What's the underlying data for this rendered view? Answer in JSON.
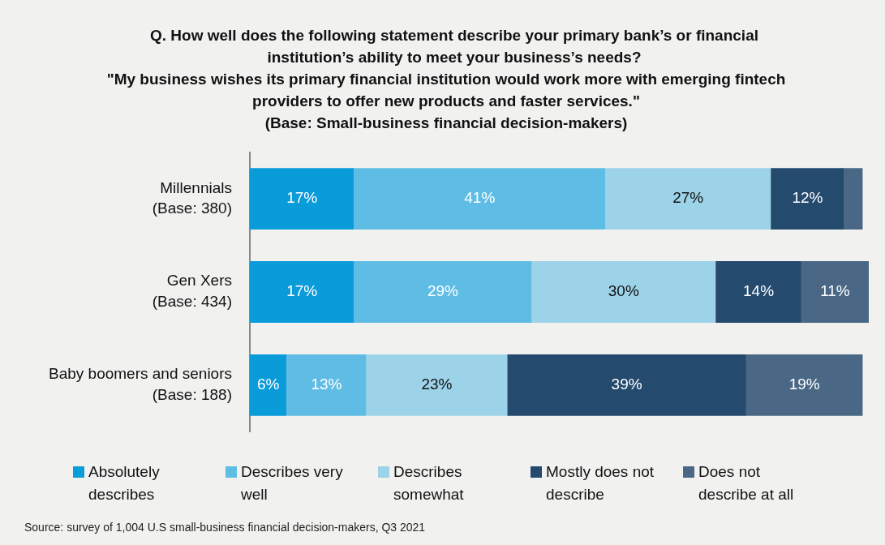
{
  "chart_data": {
    "type": "bar",
    "orientation": "horizontal",
    "stacked": true,
    "title": "Q. How well does the following statement describe your primary bank’s or financial institution’s ability to meet your business’s needs?",
    "subtitle": "\"My business wishes its primary financial institution would work more with emerging fintech providers to offer new products and faster services.\"\n(Base: Small-business financial decision-makers)",
    "categories": [
      "Millennials\n(Base: 380)",
      "Gen Xers\n(Base: 434)",
      "Baby boomers and seniors\n(Base: 188)"
    ],
    "series": [
      {
        "name": "Absolutely describes",
        "color": "#0a9bd9",
        "values": [
          17,
          17,
          6
        ],
        "value_labels": [
          "17%",
          "17%",
          "6%"
        ]
      },
      {
        "name": "Describes very well",
        "color": "#5fbde5",
        "values": [
          41,
          29,
          13
        ],
        "value_labels": [
          "41%",
          "29%",
          "13%"
        ]
      },
      {
        "name": "Describes somewhat",
        "color": "#9dd3e9",
        "values": [
          27,
          30,
          23
        ],
        "value_labels": [
          "27%",
          "30%",
          "23%"
        ]
      },
      {
        "name": "Mostly does not describe",
        "color": "#244a6e",
        "values": [
          12,
          14,
          39
        ],
        "value_labels": [
          "12%",
          "14%",
          "39%"
        ]
      },
      {
        "name": "Does not describe at all",
        "color": "#4a6886",
        "values": [
          3,
          11,
          19
        ],
        "value_labels": [
          null,
          "11%",
          "19%"
        ]
      }
    ],
    "xlim": [
      0,
      101
    ],
    "tick_labels": "y",
    "legend": "bottom",
    "annotations": [
      "Source: survey of 1,004 U.S small-business financial decision-makers, Q3 2021"
    ]
  }
}
